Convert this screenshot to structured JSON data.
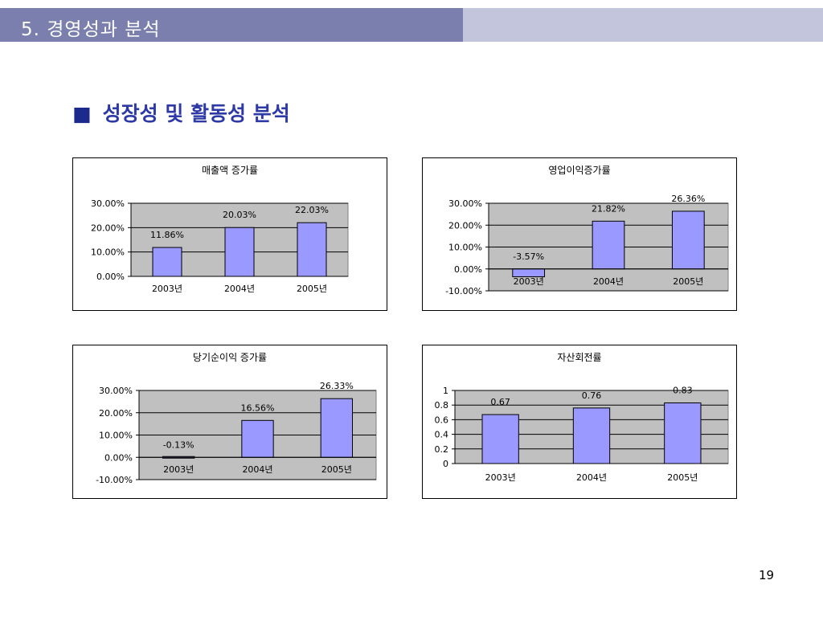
{
  "header": {
    "title": "5. 경영성과 분석"
  },
  "section": {
    "bullet": "■",
    "title": "성장성 및 활동성 분석"
  },
  "page_number": "19",
  "colors": {
    "bar_fill": "#9999ff",
    "plot_bg": "#c0c0c0",
    "header_dark": "#7b7fae",
    "header_light": "#c2c5dc",
    "section_title": "#2d3aa6"
  },
  "chart_data": [
    {
      "type": "bar",
      "title": "매출액 증가률",
      "categories": [
        "2003년",
        "2004년",
        "2005년"
      ],
      "values": [
        11.86,
        20.03,
        22.03
      ],
      "value_labels": [
        "11.86%",
        "20.03%",
        "22.03%"
      ],
      "ylim": [
        0,
        30
      ],
      "yticks": [
        0,
        10,
        20,
        30
      ],
      "ytick_labels": [
        "0.00%",
        "10.00%",
        "20.00%",
        "30.00%"
      ],
      "grid": true,
      "legend": "none",
      "xlabel": "",
      "ylabel": ""
    },
    {
      "type": "bar",
      "title": "영업이익증가률",
      "categories": [
        "2003년",
        "2004년",
        "2005년"
      ],
      "values": [
        -3.57,
        21.82,
        26.36
      ],
      "value_labels": [
        "-3.57%",
        "21.82%",
        "26.36%"
      ],
      "ylim": [
        -10,
        30
      ],
      "yticks": [
        -10,
        0,
        10,
        20,
        30
      ],
      "ytick_labels": [
        "-10.00%",
        "0.00%",
        "10.00%",
        "20.00%",
        "30.00%"
      ],
      "grid": true,
      "legend": "none",
      "xlabel": "",
      "ylabel": ""
    },
    {
      "type": "bar",
      "title": "당기순이익 증가률",
      "categories": [
        "2003년",
        "2004년",
        "2005년"
      ],
      "values": [
        -0.13,
        16.56,
        26.33
      ],
      "value_labels": [
        "-0.13%",
        "16.56%",
        "26.33%"
      ],
      "ylim": [
        -10,
        30
      ],
      "yticks": [
        -10,
        0,
        10,
        20,
        30
      ],
      "ytick_labels": [
        "-10.00%",
        "0.00%",
        "10.00%",
        "20.00%",
        "30.00%"
      ],
      "grid": true,
      "legend": "none",
      "xlabel": "",
      "ylabel": ""
    },
    {
      "type": "bar",
      "title": "자산회전률",
      "categories": [
        "2003년",
        "2004년",
        "2005년"
      ],
      "values": [
        0.67,
        0.76,
        0.83
      ],
      "value_labels": [
        "0.67",
        "0.76",
        "0.83"
      ],
      "ylim": [
        0,
        1
      ],
      "yticks": [
        0,
        0.2,
        0.4,
        0.6,
        0.8,
        1
      ],
      "ytick_labels": [
        "0",
        "0.2",
        "0.4",
        "0.6",
        "0.8",
        "1"
      ],
      "grid": true,
      "legend": "none",
      "xlabel": "",
      "ylabel": ""
    }
  ]
}
